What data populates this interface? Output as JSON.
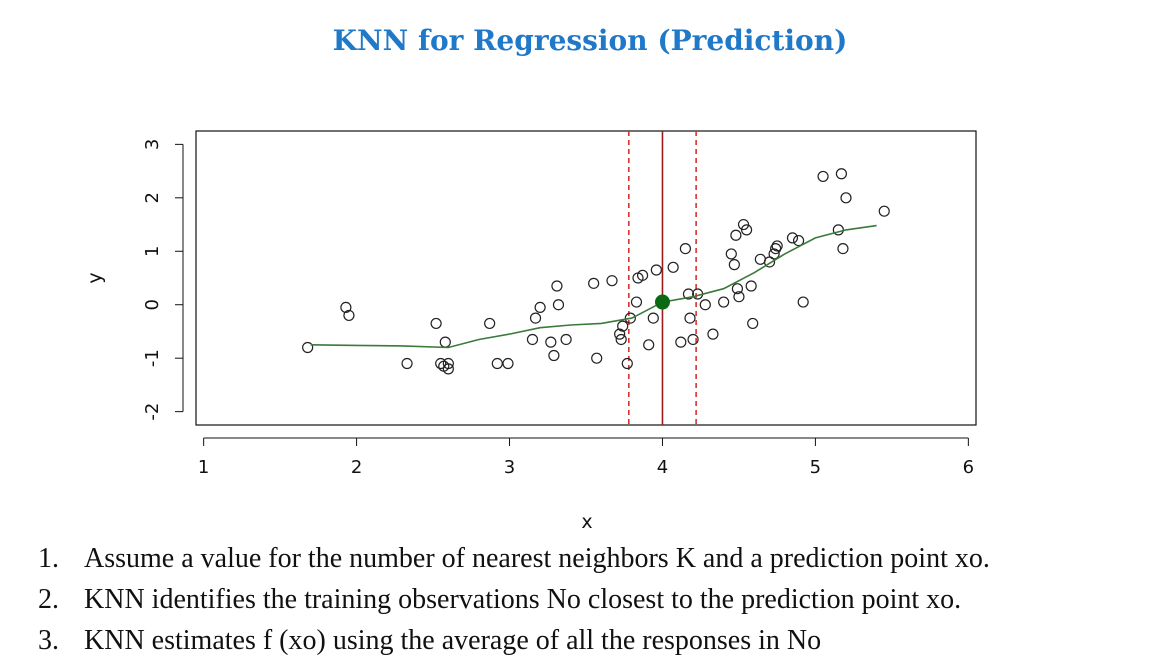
{
  "title": "KNN for Regression (Prediction)",
  "chart_data": {
    "type": "scatter",
    "xlabel": "x",
    "ylabel": "y",
    "xlim": [
      0.95,
      6.05
    ],
    "ylim": [
      -2.25,
      3.25
    ],
    "xticks": [
      1,
      2,
      3,
      4,
      5,
      6
    ],
    "yticks": [
      -2,
      -1,
      0,
      1,
      2,
      3
    ],
    "x0": 4.0,
    "neighborhood": [
      3.78,
      4.22
    ],
    "prediction": {
      "x": 4.0,
      "y": 0.05
    },
    "colors": {
      "points": "#222222",
      "fit_line": "#3a7a3a",
      "prediction_point": "#0a6a12",
      "x0_line": "#9a1c1c",
      "neighbor_lines": "#d93030"
    },
    "points": [
      [
        1.68,
        -0.8
      ],
      [
        1.93,
        -0.05
      ],
      [
        1.95,
        -0.2
      ],
      [
        2.33,
        -1.1
      ],
      [
        2.52,
        -0.35
      ],
      [
        2.55,
        -1.1
      ],
      [
        2.57,
        -1.15
      ],
      [
        2.58,
        -0.7
      ],
      [
        2.6,
        -1.1
      ],
      [
        2.6,
        -1.2
      ],
      [
        2.87,
        -0.35
      ],
      [
        2.92,
        -1.1
      ],
      [
        2.99,
        -1.1
      ],
      [
        3.15,
        -0.65
      ],
      [
        3.17,
        -0.25
      ],
      [
        3.2,
        -0.05
      ],
      [
        3.27,
        -0.7
      ],
      [
        3.29,
        -0.95
      ],
      [
        3.31,
        0.35
      ],
      [
        3.32,
        0.0
      ],
      [
        3.37,
        -0.65
      ],
      [
        3.55,
        0.4
      ],
      [
        3.57,
        -1.0
      ],
      [
        3.67,
        0.45
      ],
      [
        3.72,
        -0.55
      ],
      [
        3.73,
        -0.65
      ],
      [
        3.74,
        -0.4
      ],
      [
        3.77,
        -1.1
      ],
      [
        3.79,
        -0.25
      ],
      [
        3.83,
        0.05
      ],
      [
        3.84,
        0.5
      ],
      [
        3.87,
        0.55
      ],
      [
        3.91,
        -0.75
      ],
      [
        3.94,
        -0.25
      ],
      [
        3.96,
        0.65
      ],
      [
        4.07,
        0.7
      ],
      [
        4.12,
        -0.7
      ],
      [
        4.15,
        1.05
      ],
      [
        4.17,
        0.2
      ],
      [
        4.18,
        -0.25
      ],
      [
        4.2,
        -0.65
      ],
      [
        4.23,
        0.2
      ],
      [
        4.28,
        0.0
      ],
      [
        4.33,
        -0.55
      ],
      [
        4.4,
        0.05
      ],
      [
        4.45,
        0.95
      ],
      [
        4.47,
        0.75
      ],
      [
        4.48,
        1.3
      ],
      [
        4.49,
        0.3
      ],
      [
        4.5,
        0.15
      ],
      [
        4.53,
        1.5
      ],
      [
        4.55,
        1.4
      ],
      [
        4.58,
        0.35
      ],
      [
        4.59,
        -0.35
      ],
      [
        4.64,
        0.85
      ],
      [
        4.7,
        0.8
      ],
      [
        4.73,
        0.95
      ],
      [
        4.74,
        1.05
      ],
      [
        4.75,
        1.1
      ],
      [
        4.85,
        1.25
      ],
      [
        4.89,
        1.2
      ],
      [
        4.92,
        0.05
      ],
      [
        5.05,
        2.4
      ],
      [
        5.15,
        1.4
      ],
      [
        5.17,
        2.45
      ],
      [
        5.18,
        1.05
      ],
      [
        5.2,
        2.0
      ],
      [
        5.45,
        1.75
      ]
    ],
    "fit_line": [
      [
        1.7,
        -0.75
      ],
      [
        2.0,
        -0.76
      ],
      [
        2.3,
        -0.77
      ],
      [
        2.6,
        -0.8
      ],
      [
        2.8,
        -0.65
      ],
      [
        3.0,
        -0.55
      ],
      [
        3.2,
        -0.43
      ],
      [
        3.4,
        -0.38
      ],
      [
        3.6,
        -0.35
      ],
      [
        3.8,
        -0.25
      ],
      [
        4.0,
        0.05
      ],
      [
        4.2,
        0.15
      ],
      [
        4.4,
        0.3
      ],
      [
        4.6,
        0.6
      ],
      [
        4.8,
        0.95
      ],
      [
        5.0,
        1.25
      ],
      [
        5.2,
        1.4
      ],
      [
        5.4,
        1.48
      ]
    ]
  },
  "steps": [
    {
      "number": "1.",
      "text": "Assume a value for the number of nearest neighbors K and a prediction point xo."
    },
    {
      "number": "2.",
      "text": "KNN identifies the training observations No closest to the prediction point xo."
    },
    {
      "number": "3.",
      "text": "KNN estimates f (xo) using the average of all the responses in No"
    }
  ]
}
